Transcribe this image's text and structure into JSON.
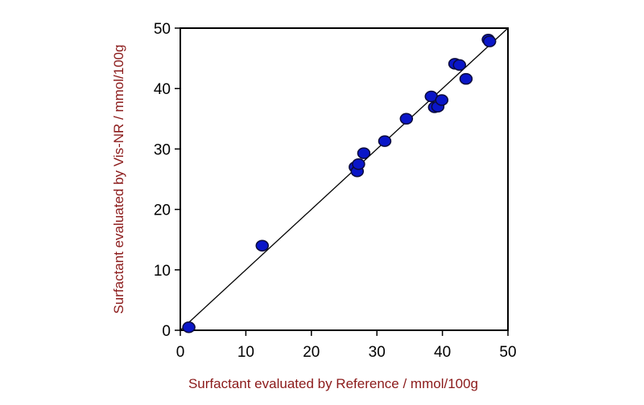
{
  "chart_data": {
    "type": "scatter",
    "xlabel": "Surfactant evaluated by Reference / mmol/100g",
    "ylabel": "Surfactant evaluated by Vis-NR / mmol/100g",
    "xlim": [
      0,
      50
    ],
    "ylim": [
      0,
      50
    ],
    "xticks": [
      0,
      10,
      20,
      30,
      40,
      50
    ],
    "yticks": [
      0,
      10,
      20,
      30,
      40,
      50
    ],
    "grid": false,
    "reference_line": {
      "x": [
        0,
        50
      ],
      "y": [
        0,
        50
      ]
    },
    "series": [
      {
        "points": [
          {
            "x": 1.3,
            "y": 0.5
          },
          {
            "x": 12.5,
            "y": 14.0
          },
          {
            "x": 26.7,
            "y": 27.0
          },
          {
            "x": 27.0,
            "y": 26.3
          },
          {
            "x": 27.2,
            "y": 27.5
          },
          {
            "x": 28.0,
            "y": 29.3
          },
          {
            "x": 31.2,
            "y": 31.3
          },
          {
            "x": 34.5,
            "y": 35.0
          },
          {
            "x": 38.3,
            "y": 38.7
          },
          {
            "x": 38.8,
            "y": 36.9
          },
          {
            "x": 39.3,
            "y": 37.0
          },
          {
            "x": 39.9,
            "y": 38.1
          },
          {
            "x": 41.9,
            "y": 44.1
          },
          {
            "x": 42.6,
            "y": 43.9
          },
          {
            "x": 43.6,
            "y": 41.6
          },
          {
            "x": 47.0,
            "y": 48.1
          },
          {
            "x": 47.2,
            "y": 47.8
          }
        ]
      }
    ],
    "colors": {
      "marker_fill": "#0a16c8",
      "marker_stroke": "#0a0a3a",
      "axis_title": "#8b1a1a",
      "line": "#000000"
    }
  }
}
